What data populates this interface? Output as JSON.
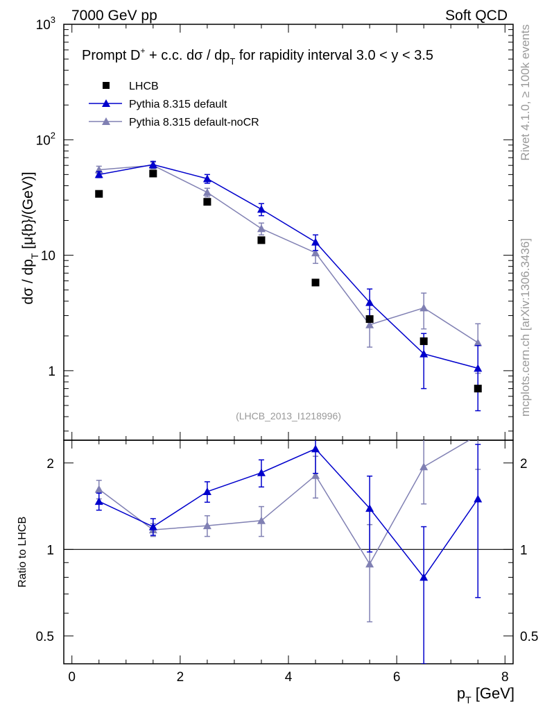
{
  "header": {
    "beam": "7000 GeV pp",
    "category": "Soft QCD"
  },
  "side": {
    "rivet": "Rivet 4.1.0, ≥ 100k events",
    "source": "mcplots.cern.ch [arXiv:1306.3436]"
  },
  "colors": {
    "data": "#000000",
    "default": "#0000cc",
    "nocr": "#8080b3",
    "label": "#999999"
  },
  "chart_data": [
    {
      "type": "scatter",
      "title_parts": {
        "a": "Prompt D",
        "sup": "+",
        "b": " + c.c.  dσ / dp",
        "sub": "T",
        "c": " for rapidity interval 3.0 < y < 3.5"
      },
      "ylabel_parts": {
        "a": "dσ / dp",
        "sub": "T",
        "b": " [μ{b}/(GeV)]"
      },
      "yscale": "log",
      "ylim": [
        0.25,
        1000
      ],
      "xlim": [
        -0.15,
        8.15
      ],
      "yticks": [
        {
          "v": 1000,
          "base": "10",
          "exp": "3"
        },
        {
          "v": 100,
          "base": "10",
          "exp": "2"
        },
        {
          "v": 10,
          "base": "10",
          "exp": ""
        },
        {
          "v": 1,
          "base": "1",
          "exp": ""
        }
      ],
      "analysis_id": "(LHCB_2013_I1218996)",
      "legend": {
        "position": "top-left",
        "entries": [
          "LHCB",
          "Pythia 8.315 default",
          "Pythia 8.315 default-noCR"
        ]
      },
      "series": [
        {
          "name": "LHCB",
          "style": "square",
          "x": [
            0.5,
            1.5,
            2.5,
            3.5,
            4.5,
            5.5,
            6.5,
            7.5
          ],
          "y": [
            34,
            51,
            29,
            13.5,
            5.8,
            2.8,
            1.8,
            0.7
          ]
        },
        {
          "name": "Pythia 8.315 default",
          "style": "triangle-line",
          "x": [
            0.5,
            1.5,
            2.5,
            3.5,
            4.5,
            5.5,
            6.5,
            7.5
          ],
          "y": [
            50,
            61,
            46,
            25,
            13,
            3.9,
            1.4,
            1.05
          ],
          "err_low": [
            3,
            4,
            4,
            3,
            2,
            1.0,
            0.7,
            0.6
          ],
          "err_high": [
            3,
            4,
            4,
            3,
            2,
            1.2,
            0.7,
            0.6
          ]
        },
        {
          "name": "Pythia 8.315 default-noCR",
          "style": "triangle-line",
          "x": [
            0.5,
            1.5,
            2.5,
            3.5,
            4.5,
            5.5,
            6.5,
            7.5
          ],
          "y": [
            55,
            60,
            35,
            17,
            10.5,
            2.5,
            3.5,
            1.75
          ],
          "err_low": [
            4,
            4,
            3,
            2,
            2,
            0.9,
            1.2,
            0.8
          ],
          "err_high": [
            4,
            4,
            3,
            2,
            2,
            0.9,
            1.2,
            0.8
          ]
        }
      ]
    },
    {
      "type": "scatter",
      "ylabel": "Ratio to LHCB",
      "xlabel_parts": {
        "a": "p",
        "sub": "T",
        "b": " [GeV]"
      },
      "yscale": "log",
      "ylim": [
        0.4,
        2.4
      ],
      "xlim": [
        -0.15,
        8.15
      ],
      "xticks": [
        "0",
        "2",
        "4",
        "6",
        "8"
      ],
      "yticks": [
        {
          "v": 0.5,
          "label": "0.5"
        },
        {
          "v": 1,
          "label": "1"
        },
        {
          "v": 2,
          "label": "2"
        }
      ],
      "series": [
        {
          "name": "Pythia 8.315 default",
          "x": [
            0.5,
            1.5,
            2.5,
            3.5,
            4.5,
            5.5,
            6.5,
            7.5
          ],
          "y": [
            1.47,
            1.2,
            1.59,
            1.85,
            2.24,
            1.39,
            0.8,
            1.5
          ],
          "err_low": [
            0.1,
            0.08,
            0.13,
            0.2,
            0.4,
            0.41,
            0.4,
            0.82
          ],
          "err_high": [
            0.1,
            0.08,
            0.13,
            0.2,
            0.4,
            0.41,
            0.4,
            0.82
          ]
        },
        {
          "name": "Pythia 8.315 default-noCR",
          "x": [
            0.5,
            1.5,
            2.5,
            3.5,
            4.5,
            5.5,
            6.5,
            7.5
          ],
          "y": [
            1.62,
            1.17,
            1.21,
            1.26,
            1.81,
            0.89,
            1.94,
            2.5
          ],
          "err_low": [
            0.12,
            0.06,
            0.1,
            0.15,
            0.3,
            0.33,
            0.5,
            0.6
          ],
          "err_high": [
            0.12,
            0.06,
            0.1,
            0.15,
            0.3,
            0.33,
            0.5,
            0.6
          ]
        }
      ]
    }
  ]
}
